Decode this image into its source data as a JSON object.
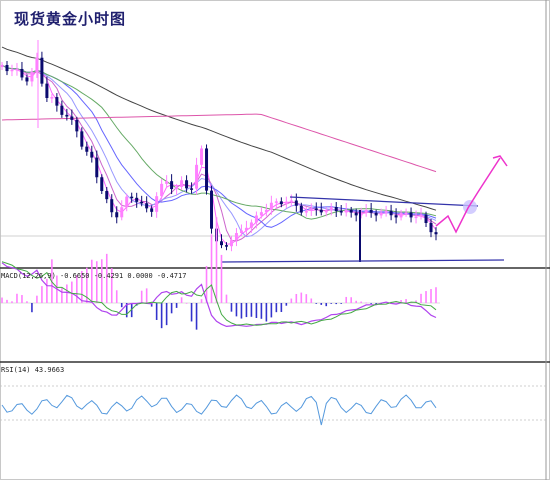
{
  "title": "现货黄金小时图",
  "chart_data": [
    {
      "type": "candlestick",
      "panel": "price",
      "candles_count": 88,
      "moving_averages": [
        "#ff66ff",
        "#cc66cc",
        "#9999ff",
        "#6666ff",
        "#66aa66",
        "#444444",
        "#dd55aa"
      ],
      "annotations": {
        "resistance_line": true,
        "support_line": true,
        "forecast_arrow": true,
        "highlight_circle": true
      },
      "colors": {
        "bull": "#ff80ff",
        "bear": "#0a0a6e",
        "resistance": "#3333aa",
        "support": "#3333aa",
        "forecast": "#ee33cc"
      },
      "grid": false
    },
    {
      "type": "bar",
      "panel": "macd",
      "label": "MACD(12,26,9) -0.6650 -0.4291 0.0000 -0.4717",
      "colors": {
        "positive": "#ff80ff",
        "negative": "#3333cc",
        "signal": "#44aa44",
        "macd": "#b044ee"
      }
    },
    {
      "type": "line",
      "panel": "rsi",
      "label": "RSI(14) 43.9663",
      "colors": {
        "line": "#5599dd"
      }
    }
  ]
}
